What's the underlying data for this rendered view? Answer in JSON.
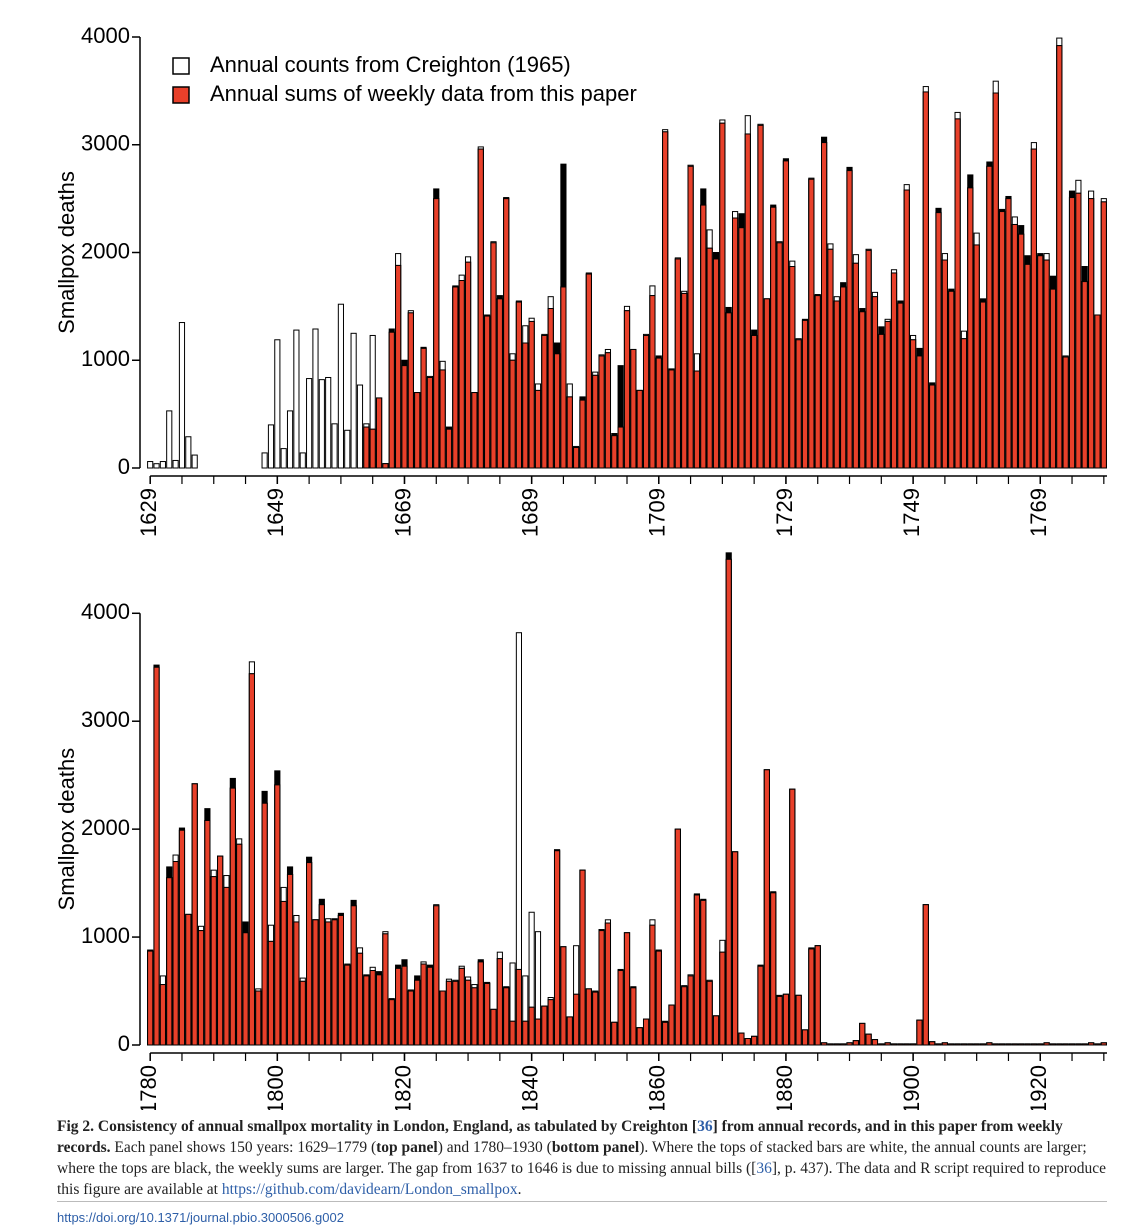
{
  "chart_data": [
    {
      "type": "bar",
      "y_label": "Smallpox deaths",
      "legend": "upper left",
      "excess_color": "#000000",
      "x": [
        1629,
        1630,
        1631,
        1632,
        1633,
        1634,
        1635,
        1636,
        1637,
        1638,
        1639,
        1640,
        1641,
        1642,
        1643,
        1644,
        1645,
        1646,
        1647,
        1648,
        1649,
        1650,
        1651,
        1652,
        1653,
        1654,
        1655,
        1656,
        1657,
        1658,
        1659,
        1660,
        1661,
        1662,
        1663,
        1664,
        1665,
        1666,
        1667,
        1668,
        1669,
        1670,
        1671,
        1672,
        1673,
        1674,
        1675,
        1676,
        1677,
        1678,
        1679,
        1680,
        1681,
        1682,
        1683,
        1684,
        1685,
        1686,
        1687,
        1688,
        1689,
        1690,
        1691,
        1692,
        1693,
        1694,
        1695,
        1696,
        1697,
        1698,
        1699,
        1700,
        1701,
        1702,
        1703,
        1704,
        1705,
        1706,
        1707,
        1708,
        1709,
        1710,
        1711,
        1712,
        1713,
        1714,
        1715,
        1716,
        1717,
        1718,
        1719,
        1720,
        1721,
        1722,
        1723,
        1724,
        1725,
        1726,
        1727,
        1728,
        1729,
        1730,
        1731,
        1732,
        1733,
        1734,
        1735,
        1736,
        1737,
        1738,
        1739,
        1740,
        1741,
        1742,
        1743,
        1744,
        1745,
        1746,
        1747,
        1748,
        1749,
        1750,
        1751,
        1752,
        1753,
        1754,
        1755,
        1756,
        1757,
        1758,
        1759,
        1760,
        1761,
        1762,
        1763,
        1764,
        1765,
        1766,
        1767,
        1768,
        1769,
        1770,
        1771,
        1772,
        1773,
        1774,
        1775,
        1776,
        1777,
        1778,
        1779
      ],
      "xlim": [
        1628.5,
        1779.5
      ],
      "xticks": [
        1629,
        1649,
        1669,
        1689,
        1709,
        1729,
        1749,
        1769
      ],
      "ylim": [
        0,
        4000
      ],
      "yticks": [
        0,
        1000,
        2000,
        3000,
        4000
      ],
      "series": [
        {
          "name": "Annual counts from Creighton (1965)",
          "color": "#ffffff",
          "values": [
            60,
            40,
            60,
            530,
            70,
            1350,
            290,
            120,
            null,
            null,
            null,
            null,
            null,
            null,
            null,
            null,
            null,
            null,
            140,
            400,
            1190,
            180,
            530,
            1280,
            140,
            830,
            1290,
            820,
            840,
            410,
            1520,
            350,
            1250,
            770,
            410,
            1230,
            650,
            40,
            1260,
            1990,
            950,
            1460,
            700,
            1110,
            850,
            2500,
            990,
            360,
            1680,
            1790,
            1960,
            700,
            2980,
            1410,
            2100,
            1570,
            2500,
            1060,
            1550,
            1320,
            1390,
            780,
            1240,
            1590,
            1060,
            1680,
            780,
            200,
            630,
            1810,
            890,
            1050,
            1100,
            300,
            380,
            1500,
            1100,
            720,
            1240,
            1690,
            1020,
            3140,
            910,
            1950,
            1640,
            2810,
            1060,
            2440,
            2210,
            1940,
            3230,
            1440,
            2380,
            2230,
            3270,
            1230,
            3190,
            1570,
            2420,
            2100,
            2850,
            1920,
            1200,
            1370,
            2690,
            1600,
            3020,
            2080,
            1590,
            1680,
            2760,
            1980,
            1450,
            2030,
            1630,
            1240,
            1380,
            1840,
            1530,
            2630,
            1230,
            1040,
            3540,
            770,
            2370,
            1990,
            1640,
            3300,
            1270,
            2600,
            2180,
            1540,
            2800,
            3590,
            2380,
            2500,
            2330,
            2170,
            1890,
            3020,
            1970,
            1990,
            1660,
            3990,
            1040,
            2510,
            2670,
            1730,
            2570,
            1420,
            2500
          ]
        },
        {
          "name": "Annual sums of weekly data from this paper",
          "color": "#e8402a",
          "values": [
            null,
            null,
            null,
            null,
            null,
            null,
            null,
            null,
            null,
            null,
            null,
            null,
            null,
            null,
            null,
            null,
            null,
            null,
            null,
            null,
            null,
            null,
            null,
            null,
            null,
            null,
            null,
            null,
            null,
            null,
            null,
            null,
            null,
            null,
            380,
            360,
            650,
            40,
            1290,
            1880,
            1000,
            1440,
            700,
            1120,
            840,
            2590,
            910,
            380,
            1690,
            1740,
            1910,
            700,
            2960,
            1420,
            2090,
            1600,
            2510,
            1000,
            1540,
            1160,
            1360,
            720,
            1230,
            1480,
            1160,
            2820,
            660,
            190,
            660,
            1800,
            860,
            1040,
            1070,
            320,
            950,
            1460,
            1100,
            720,
            1230,
            1600,
            1040,
            3120,
            920,
            1940,
            1620,
            2800,
            900,
            2590,
            2040,
            2000,
            3200,
            1490,
            2320,
            2360,
            3100,
            1280,
            3180,
            1570,
            2440,
            2090,
            2870,
            1870,
            1190,
            1380,
            2680,
            1610,
            3070,
            2030,
            1550,
            1720,
            2790,
            1900,
            1480,
            2020,
            1590,
            1310,
            1360,
            1810,
            1550,
            2580,
            1190,
            1110,
            3490,
            790,
            2410,
            1930,
            1660,
            3240,
            1200,
            2720,
            2070,
            1570,
            2840,
            3480,
            2400,
            2520,
            2260,
            2250,
            1970,
            2960,
            1990,
            1930,
            1780,
            3920,
            1030,
            2570,
            2550,
            1870,
            2500,
            1420,
            2470
          ]
        }
      ]
    },
    {
      "type": "bar",
      "y_label": "Smallpox deaths",
      "excess_color": "#000000",
      "x": [
        1780,
        1781,
        1782,
        1783,
        1784,
        1785,
        1786,
        1787,
        1788,
        1789,
        1790,
        1791,
        1792,
        1793,
        1794,
        1795,
        1796,
        1797,
        1798,
        1799,
        1800,
        1801,
        1802,
        1803,
        1804,
        1805,
        1806,
        1807,
        1808,
        1809,
        1810,
        1811,
        1812,
        1813,
        1814,
        1815,
        1816,
        1817,
        1818,
        1819,
        1820,
        1821,
        1822,
        1823,
        1824,
        1825,
        1826,
        1827,
        1828,
        1829,
        1830,
        1831,
        1832,
        1833,
        1834,
        1835,
        1836,
        1837,
        1838,
        1839,
        1840,
        1841,
        1842,
        1843,
        1844,
        1845,
        1846,
        1847,
        1848,
        1849,
        1850,
        1851,
        1852,
        1853,
        1854,
        1855,
        1856,
        1857,
        1858,
        1859,
        1860,
        1861,
        1862,
        1863,
        1864,
        1865,
        1866,
        1867,
        1868,
        1869,
        1870,
        1871,
        1872,
        1873,
        1874,
        1875,
        1876,
        1877,
        1878,
        1879,
        1880,
        1881,
        1882,
        1883,
        1884,
        1885,
        1886,
        1887,
        1888,
        1889,
        1890,
        1891,
        1892,
        1893,
        1894,
        1895,
        1896,
        1897,
        1898,
        1899,
        1900,
        1901,
        1902,
        1903,
        1904,
        1905,
        1906,
        1907,
        1908,
        1909,
        1910,
        1911,
        1912,
        1913,
        1914,
        1915,
        1916,
        1917,
        1918,
        1919,
        1920,
        1921,
        1922,
        1923,
        1924,
        1925,
        1926,
        1927,
        1928,
        1929,
        1930
      ],
      "xlim": [
        1779.5,
        1930.5
      ],
      "xticks": [
        1780,
        1800,
        1820,
        1840,
        1860,
        1880,
        1900,
        1920
      ],
      "ylim": [
        0,
        4540
      ],
      "yticks": [
        0,
        1000,
        2000,
        3000,
        4000
      ],
      "series": [
        {
          "color": "#ffffff",
          "values": [
            870,
            3500,
            640,
            1550,
            1760,
            1990,
            1210,
            2420,
            1100,
            2080,
            1620,
            1750,
            1570,
            2380,
            1910,
            1040,
            3550,
            520,
            2240,
            1110,
            2410,
            1460,
            1580,
            1200,
            620,
            1690,
            1160,
            1300,
            1170,
            1160,
            1200,
            750,
            1290,
            900,
            640,
            720,
            650,
            1050,
            420,
            710,
            730,
            510,
            600,
            770,
            720,
            1300,
            500,
            610,
            600,
            730,
            630,
            560,
            770,
            570,
            330,
            860,
            530,
            760,
            3820,
            640,
            1230,
            1050,
            360,
            440,
            1800,
            910,
            260,
            920,
            1620,
            520,
            500,
            1060,
            1160,
            210,
            690,
            1040,
            530,
            160,
            240,
            1160,
            880,
            210,
            370,
            2000,
            550,
            650,
            1390,
            1340,
            600,
            270,
            970,
            4500,
            1790,
            110,
            60,
            80,
            730,
            2550,
            1410,
            450,
            470,
            2370,
            460,
            140,
            890,
            920,
            20,
            10,
            10,
            10,
            20,
            40,
            200,
            100,
            50,
            10,
            20,
            10,
            10,
            10,
            10,
            230,
            1300,
            30,
            10,
            20,
            10,
            10,
            10,
            10,
            10,
            10,
            20,
            10,
            10,
            10,
            10,
            10,
            10,
            10,
            10,
            20,
            10,
            10,
            10,
            10,
            10,
            10,
            20,
            10,
            20
          ]
        },
        {
          "color": "#e8402a",
          "values": [
            880,
            3520,
            560,
            1650,
            1700,
            2010,
            1210,
            2420,
            1060,
            2190,
            1560,
            1750,
            1460,
            2470,
            1860,
            1140,
            3440,
            500,
            2350,
            960,
            2540,
            1330,
            1650,
            1140,
            590,
            1740,
            1160,
            1350,
            1140,
            1170,
            1220,
            740,
            1340,
            850,
            650,
            690,
            680,
            1030,
            430,
            740,
            790,
            500,
            640,
            750,
            740,
            1290,
            500,
            590,
            590,
            710,
            600,
            530,
            790,
            580,
            330,
            800,
            540,
            220,
            700,
            220,
            350,
            240,
            360,
            420,
            1810,
            910,
            260,
            470,
            1620,
            520,
            490,
            1070,
            1130,
            210,
            700,
            1040,
            540,
            160,
            240,
            1110,
            870,
            220,
            370,
            2000,
            540,
            640,
            1400,
            1350,
            590,
            270,
            860,
            4560,
            1790,
            110,
            60,
            80,
            740,
            2550,
            1420,
            460,
            470,
            2370,
            460,
            140,
            900,
            920,
            20,
            10,
            10,
            10,
            20,
            40,
            200,
            100,
            50,
            10,
            20,
            10,
            10,
            10,
            10,
            230,
            1300,
            30,
            10,
            20,
            10,
            10,
            10,
            10,
            10,
            10,
            20,
            10,
            10,
            10,
            10,
            10,
            10,
            10,
            10,
            20,
            10,
            10,
            10,
            10,
            10,
            10,
            20,
            10,
            20
          ]
        }
      ]
    }
  ],
  "caption": {
    "segments": [
      {
        "text": "Fig 2.  Consistency of annual smallpox mortality in London, England, as tabulated by Creighton [",
        "style": "bold"
      },
      {
        "text": "36",
        "style": "bold-link"
      },
      {
        "text": "] from annual records, and in this paper from weekly records.",
        "style": "bold"
      },
      {
        "text": " Each panel shows 150 years: 1629–1779 (",
        "style": "normal"
      },
      {
        "text": "top panel",
        "style": "bold"
      },
      {
        "text": ") and 1780–1930 (",
        "style": "normal"
      },
      {
        "text": "bottom panel",
        "style": "bold"
      },
      {
        "text": "). Where the tops of stacked bars are white, the annual counts are larger; where the tops are black, the weekly sums are larger. The gap from 1637 to 1646 is due to missing annual bills ([",
        "style": "normal"
      },
      {
        "text": "36",
        "style": "link"
      },
      {
        "text": "], p. 437). The data and R script required to reproduce this figure are available at ",
        "style": "normal"
      },
      {
        "text": "https://github.com/davidearn/London_smallpox",
        "style": "link"
      },
      {
        "text": ".",
        "style": "normal"
      }
    ]
  },
  "doi": "https://doi.org/10.1371/journal.pbio.3000506.g002"
}
